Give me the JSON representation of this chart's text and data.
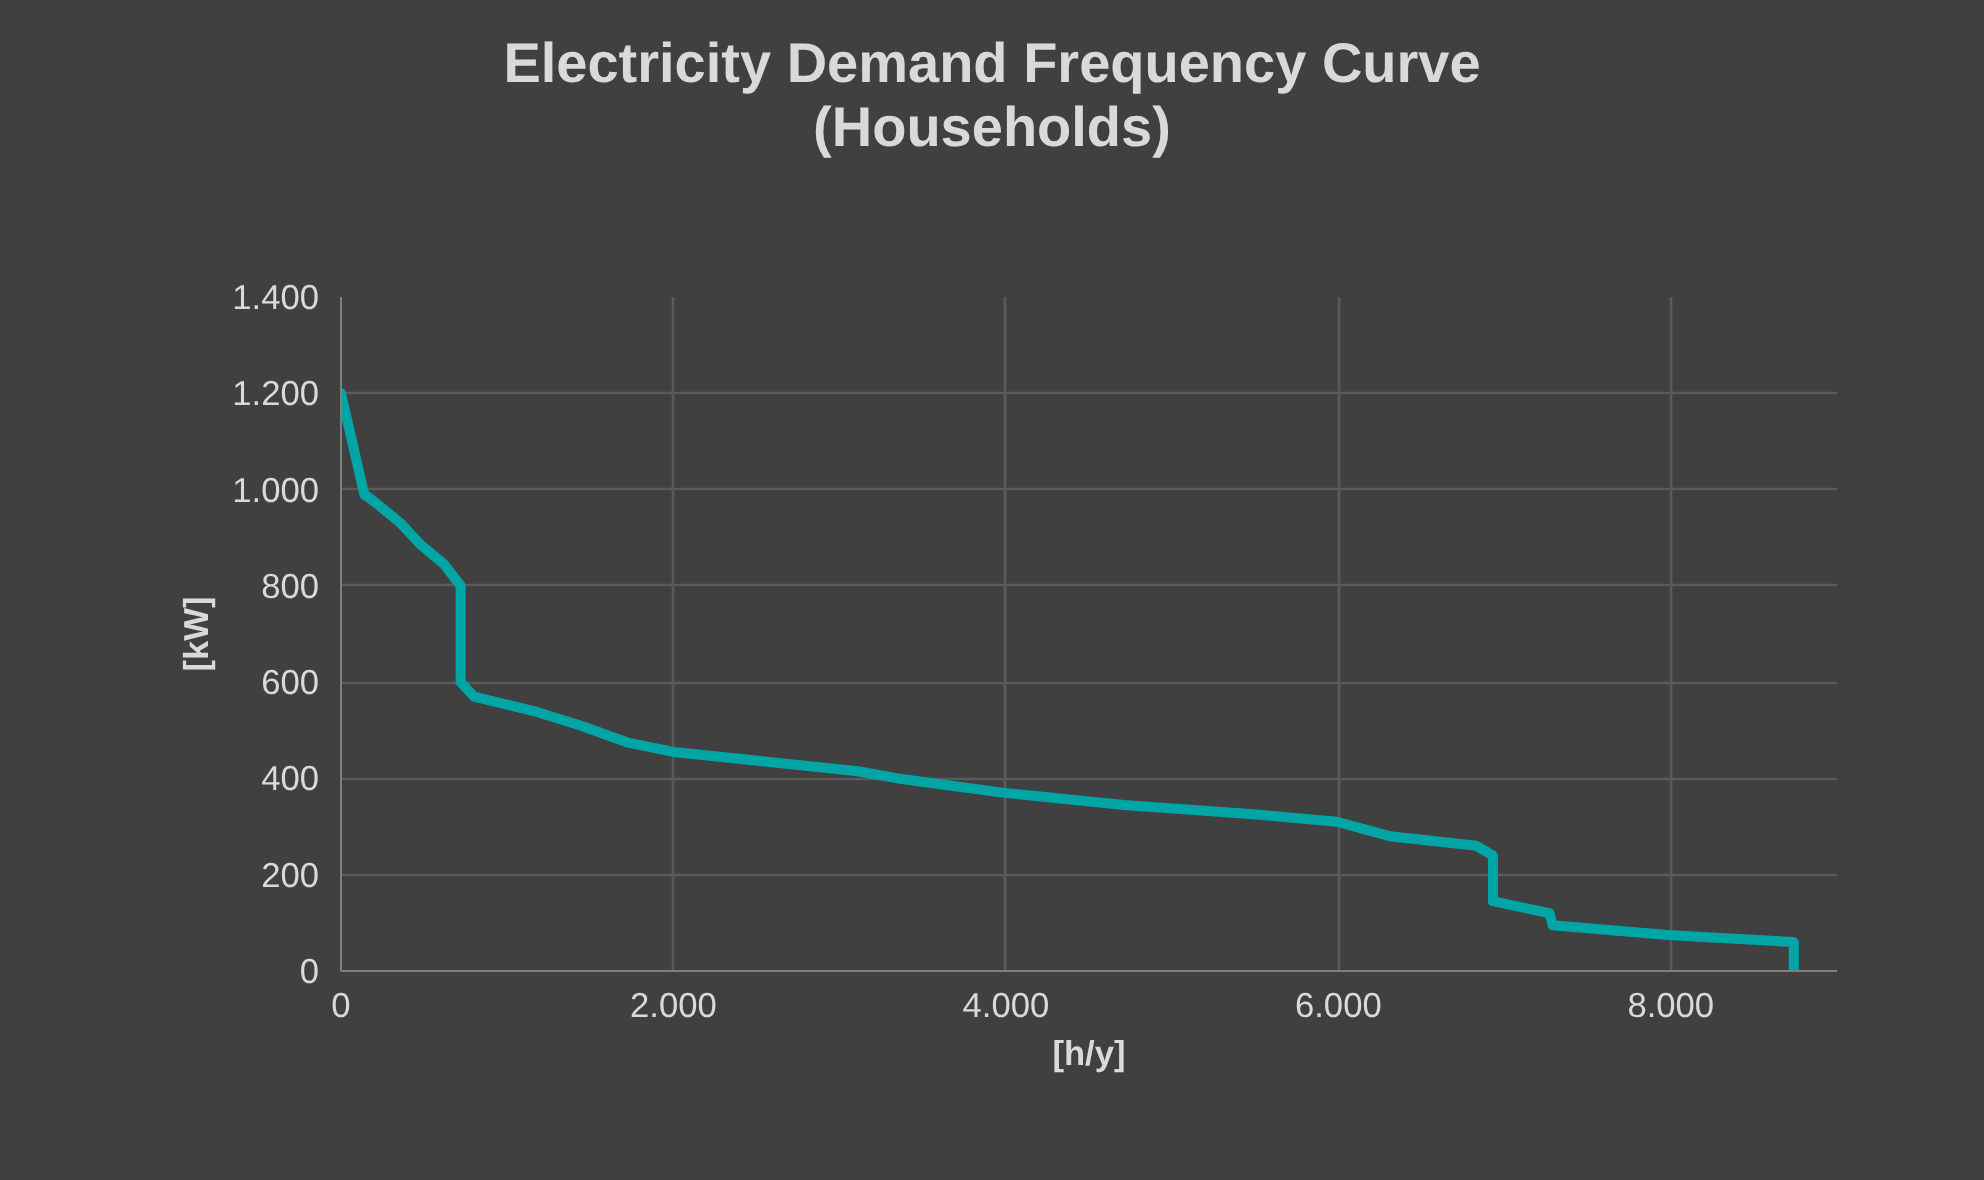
{
  "chart_data": {
    "type": "line",
    "title": "Electricity Demand Frequency Curve\n(Households)",
    "xlabel": "[h/y]",
    "ylabel": "[kW]",
    "x": [
      0,
      140,
      200,
      360,
      480,
      620,
      720,
      720,
      800,
      1160,
      1440,
      1720,
      2000,
      3110,
      3350,
      3990,
      4710,
      5510,
      5990,
      6310,
      6710,
      6830,
      6930,
      6930,
      7270,
      7290,
      7980,
      8740,
      8740
    ],
    "series": [
      {
        "color": "#00a5a5",
        "values": [
          1200,
          990,
          975,
          930,
          885,
          845,
          800,
          600,
          570,
          540,
          510,
          475,
          455,
          415,
          400,
          370,
          345,
          325,
          310,
          280,
          265,
          260,
          240,
          145,
          120,
          95,
          75,
          60,
          0
        ]
      }
    ],
    "xlim": [
      0,
      9000
    ],
    "xticks": [
      0,
      {
        "value": 2000,
        "label": "2.000"
      },
      {
        "value": 4000,
        "label": "4.000"
      },
      {
        "value": 6000,
        "label": "6.000"
      },
      {
        "value": 8000,
        "label": "8.000"
      }
    ],
    "ylim": [
      0,
      1400
    ],
    "yticks": [
      0,
      200,
      400,
      600,
      800,
      {
        "value": 1000,
        "label": "1.000"
      },
      {
        "value": 1200,
        "label": "1.200"
      },
      {
        "value": 1400,
        "label": "1.400"
      }
    ],
    "grid": true,
    "marker": "none",
    "line_style": "solid"
  }
}
